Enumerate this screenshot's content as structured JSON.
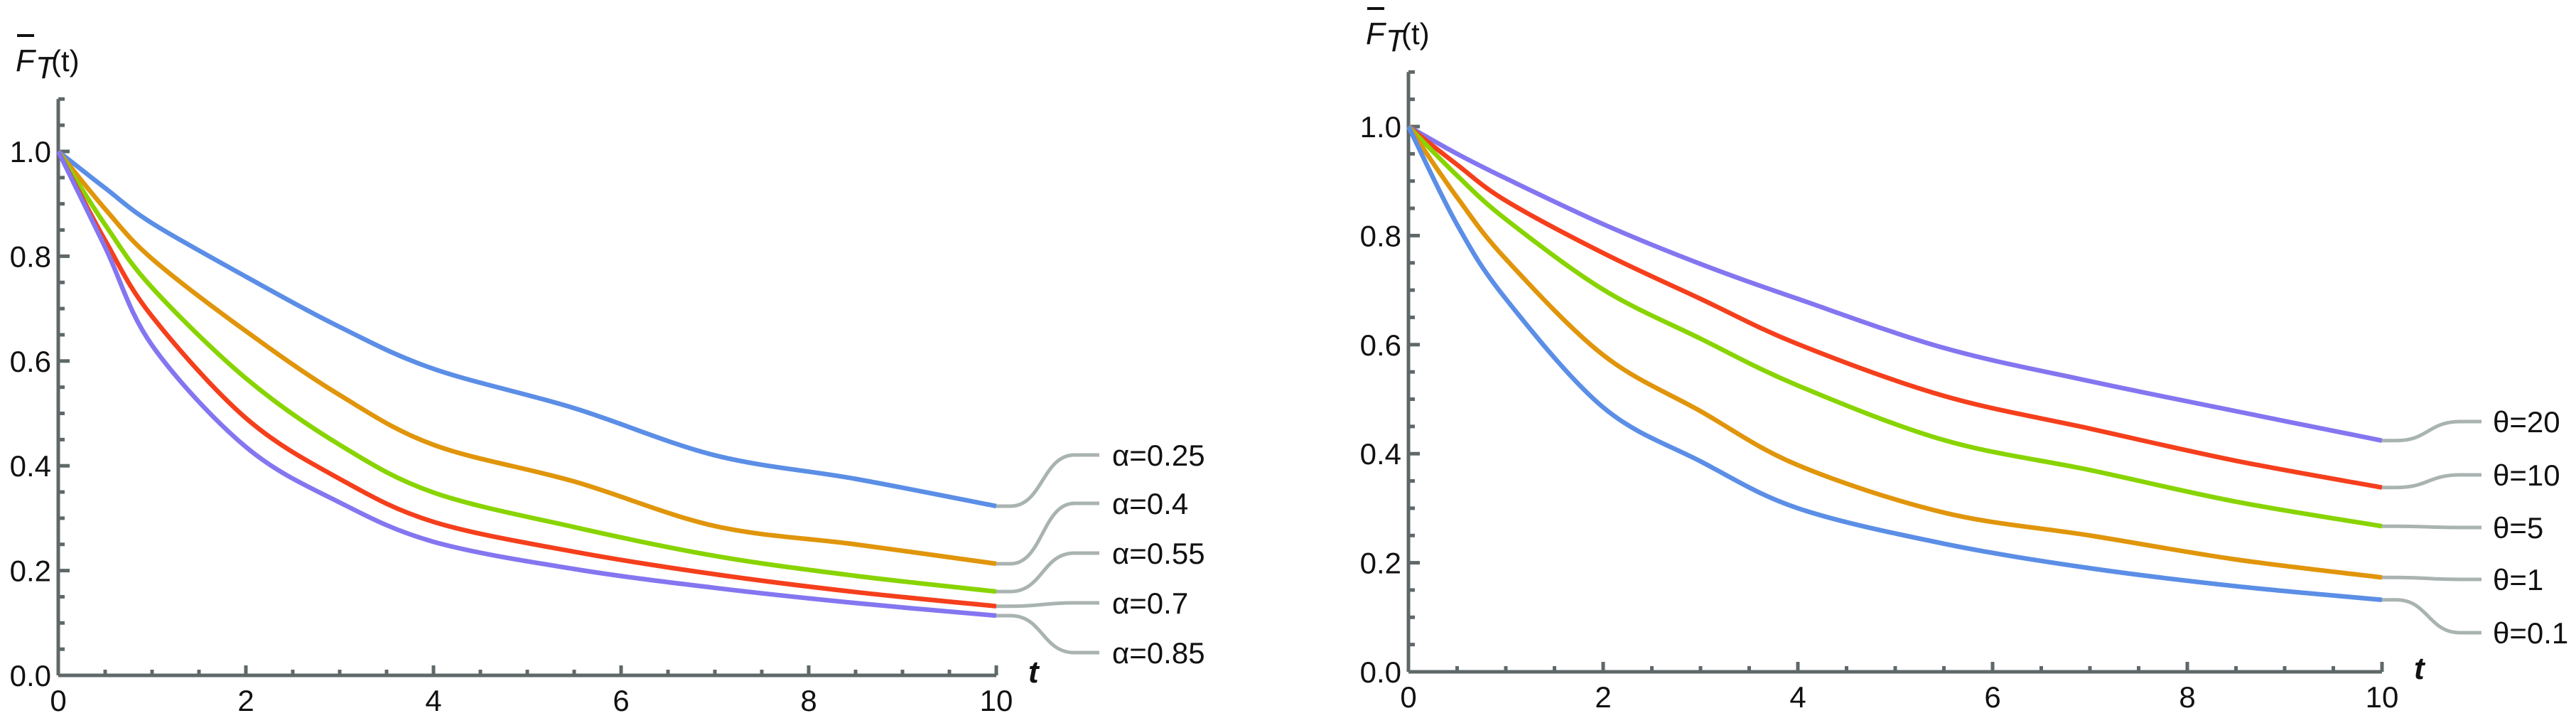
{
  "chart_data": [
    {
      "type": "line",
      "title": "",
      "y_label": {
        "main": "F",
        "sub": "T",
        "arg": "(t)"
      },
      "xlabel": "t",
      "xlim": [
        0,
        10
      ],
      "ylim": [
        0,
        1.1
      ],
      "x_ticks": [
        "0",
        "2",
        "4",
        "6",
        "8",
        "10"
      ],
      "y_ticks": [
        "0.0",
        "0.2",
        "0.4",
        "0.6",
        "0.8",
        "1.0"
      ],
      "grid": false,
      "legend": "inline-right",
      "x": [
        0,
        0.5,
        1,
        2,
        3,
        4,
        5.5,
        7,
        8.5,
        10
      ],
      "series": [
        {
          "name": "α=0.25",
          "color": "#5b8ee6",
          "values": [
            1,
            0.93,
            0.863,
            0.761,
            0.665,
            0.585,
            0.51,
            0.42,
            0.375,
            0.323
          ]
        },
        {
          "name": "α=0.4",
          "color": "#e0950a",
          "values": [
            1,
            0.89,
            0.795,
            0.657,
            0.535,
            0.44,
            0.37,
            0.285,
            0.25,
            0.213
          ]
        },
        {
          "name": "α=0.55",
          "color": "#88d400",
          "values": [
            1,
            0.86,
            0.74,
            0.567,
            0.44,
            0.349,
            0.283,
            0.228,
            0.19,
            0.16
          ]
        },
        {
          "name": "α=0.7",
          "color": "#f53f1c",
          "values": [
            1,
            0.83,
            0.685,
            0.491,
            0.375,
            0.293,
            0.236,
            0.193,
            0.159,
            0.132
          ]
        },
        {
          "name": "α=0.85",
          "color": "#8476f0",
          "values": [
            1,
            0.817,
            0.63,
            0.436,
            0.33,
            0.255,
            0.203,
            0.167,
            0.138,
            0.114
          ]
        }
      ]
    },
    {
      "type": "line",
      "title": "",
      "y_label": {
        "main": "F",
        "sub": "T",
        "arg": "(t)"
      },
      "xlabel": "t",
      "xlim": [
        0,
        10
      ],
      "ylim": [
        0,
        1.1
      ],
      "x_ticks": [
        "0",
        "2",
        "4",
        "6",
        "8",
        "10"
      ],
      "y_ticks": [
        "0.0",
        "0.2",
        "0.4",
        "0.6",
        "0.8",
        "1.0"
      ],
      "grid": false,
      "legend": "inline-right",
      "x": [
        0,
        0.5,
        1,
        2,
        3,
        4,
        5.5,
        7,
        8.5,
        10
      ],
      "series": [
        {
          "name": "θ=20",
          "color": "#8476f0",
          "values": [
            1,
            0.95,
            0.905,
            0.821,
            0.748,
            0.684,
            0.594,
            0.533,
            0.478,
            0.424
          ]
        },
        {
          "name": "θ=10",
          "color": "#f53f1c",
          "values": [
            1,
            0.93,
            0.864,
            0.768,
            0.684,
            0.601,
            0.506,
            0.446,
            0.387,
            0.338
          ]
        },
        {
          "name": "θ=5",
          "color": "#88d400",
          "values": [
            1,
            0.91,
            0.83,
            0.701,
            0.611,
            0.525,
            0.425,
            0.37,
            0.312,
            0.267
          ]
        },
        {
          "name": "θ=1",
          "color": "#e0950a",
          "values": [
            1,
            0.87,
            0.757,
            0.581,
            0.478,
            0.379,
            0.292,
            0.25,
            0.206,
            0.173
          ]
        },
        {
          "name": "θ=0.1",
          "color": "#5b8ee6",
          "values": [
            1,
            0.82,
            0.684,
            0.485,
            0.386,
            0.3,
            0.235,
            0.19,
            0.157,
            0.132
          ]
        }
      ]
    }
  ],
  "colors": {
    "axis": "#5f6868",
    "leader": "#a9b3b1"
  }
}
